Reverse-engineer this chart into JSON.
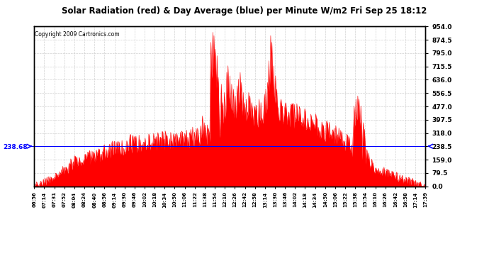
{
  "title": "Solar Radiation (red) & Day Average (blue) per Minute W/m2 Fri Sep 25 18:12",
  "copyright_text": "Copyright 2009 Cartronics.com",
  "ymin": 0.0,
  "ymax": 954.0,
  "yticks_right": [
    0.0,
    79.5,
    159.0,
    238.5,
    318.0,
    397.5,
    477.0,
    556.5,
    636.0,
    715.5,
    795.0,
    874.5,
    954.0
  ],
  "day_average": 238.68,
  "fill_color": "#FF0000",
  "line_color": "#0000FF",
  "background_color": "#FFFFFF",
  "grid_color": "#CCCCCC",
  "xtick_labels": [
    "06:56",
    "07:14",
    "07:31",
    "07:52",
    "08:04",
    "08:24",
    "08:40",
    "08:56",
    "09:14",
    "09:30",
    "09:46",
    "10:02",
    "10:18",
    "10:34",
    "10:50",
    "11:06",
    "11:22",
    "11:38",
    "11:54",
    "12:10",
    "12:26",
    "12:42",
    "12:58",
    "13:14",
    "13:30",
    "13:46",
    "14:02",
    "14:18",
    "14:34",
    "14:50",
    "15:06",
    "15:22",
    "15:38",
    "15:54",
    "16:10",
    "16:26",
    "16:42",
    "16:58",
    "17:14",
    "17:39"
  ]
}
